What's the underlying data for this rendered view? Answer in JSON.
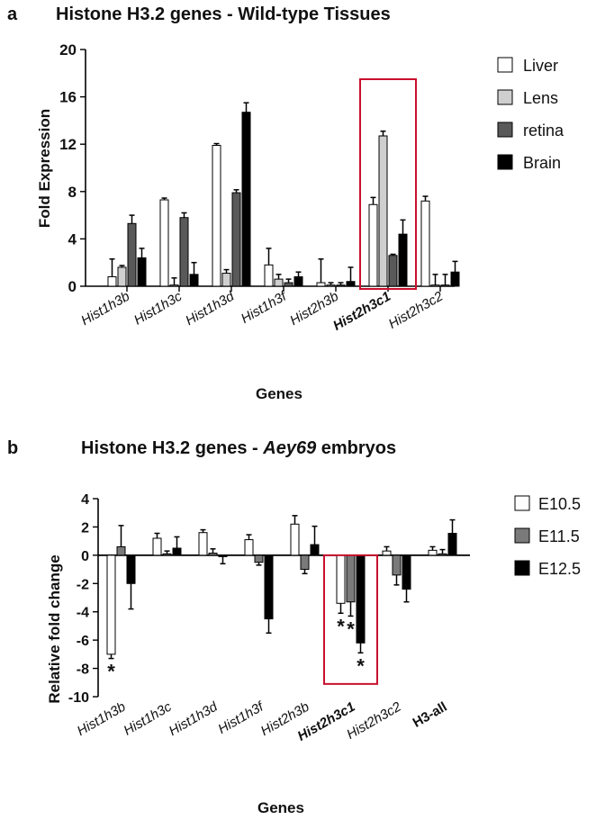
{
  "chart_data": [
    {
      "type": "bar",
      "panel_letter": "a",
      "title": "Histone H3.2 genes - Wild-type Tissues",
      "xlabel": "Genes",
      "ylabel": "Fold Expression",
      "ylim": [
        0,
        20
      ],
      "yticks": [
        0,
        4,
        8,
        12,
        16,
        20
      ],
      "categories": [
        "Hist1h3b",
        "Hist1h3c",
        "Hist1h3d",
        "Hist1h3f",
        "Hist2h3b",
        "Hist2h3c1",
        "Hist2h3c2"
      ],
      "highlighted_category": "Hist2h3c1",
      "legend_position": "right",
      "series": [
        {
          "name": "Liver",
          "color": "#ffffff",
          "values": [
            0.8,
            7.3,
            11.9,
            1.8,
            0.3,
            6.9,
            7.2
          ],
          "errors": [
            1.5,
            0.15,
            0.15,
            1.4,
            2.0,
            0.6,
            0.4
          ]
        },
        {
          "name": "Lens",
          "color": "#cfcfcf",
          "values": [
            1.6,
            0.1,
            1.1,
            0.6,
            0.1,
            12.7,
            0.1
          ],
          "errors": [
            0.15,
            0.6,
            0.3,
            0.4,
            0.2,
            0.4,
            0.9
          ]
        },
        {
          "name": "retina",
          "color": "#595959",
          "values": [
            5.3,
            5.8,
            7.9,
            0.3,
            0.1,
            2.6,
            0.1
          ],
          "errors": [
            0.7,
            0.4,
            0.25,
            0.3,
            0.2,
            0.1,
            0.9
          ]
        },
        {
          "name": "Brain",
          "color": "#000000",
          "values": [
            2.4,
            1.0,
            14.7,
            0.8,
            0.4,
            4.4,
            1.2
          ],
          "errors": [
            0.8,
            1.0,
            0.8,
            0.4,
            1.2,
            1.2,
            0.9
          ]
        }
      ]
    },
    {
      "type": "bar",
      "panel_letter": "b",
      "title_prefix": "Histone H3.2 genes - ",
      "title_italic": "Aey69",
      "title_suffix": " embryos",
      "xlabel": "Genes",
      "ylabel": "Relative fold change",
      "ylim": [
        -10,
        4
      ],
      "yticks": [
        -10,
        -8,
        -6,
        -4,
        -2,
        0,
        2,
        4
      ],
      "categories": [
        "Hist1h3b",
        "Hist1h3c",
        "Hist1h3d",
        "Hist1h3f",
        "Hist2h3b",
        "Hist2h3c1",
        "Hist2h3c2",
        "H3-all"
      ],
      "highlighted_category": "Hist2h3c1",
      "legend_position": "right",
      "series": [
        {
          "name": "E10.5",
          "color": "#ffffff",
          "values": [
            -7.0,
            1.2,
            1.6,
            1.1,
            2.2,
            -3.4,
            0.3,
            0.35
          ],
          "errors": [
            0.3,
            0.35,
            0.2,
            0.35,
            0.6,
            0.7,
            0.3,
            0.25
          ],
          "significant": [
            true,
            false,
            false,
            false,
            false,
            true,
            false,
            false
          ]
        },
        {
          "name": "E11.5",
          "color": "#7a7a7a",
          "values": [
            0.6,
            0.1,
            0.15,
            -0.5,
            -1.0,
            -3.3,
            -1.4,
            0.1
          ],
          "errors": [
            1.5,
            0.2,
            0.3,
            0.2,
            0.3,
            1.0,
            0.7,
            0.3
          ],
          "significant": [
            false,
            false,
            false,
            false,
            false,
            true,
            false,
            false
          ]
        },
        {
          "name": "E12.5",
          "color": "#000000",
          "values": [
            -2.0,
            0.5,
            -0.1,
            -4.5,
            0.75,
            -6.2,
            -2.4,
            1.55
          ],
          "errors": [
            1.8,
            0.8,
            0.5,
            1.0,
            1.3,
            0.7,
            0.9,
            0.95
          ],
          "significant": [
            false,
            false,
            false,
            false,
            false,
            true,
            false,
            false
          ]
        }
      ],
      "significance_marker": "*"
    }
  ]
}
